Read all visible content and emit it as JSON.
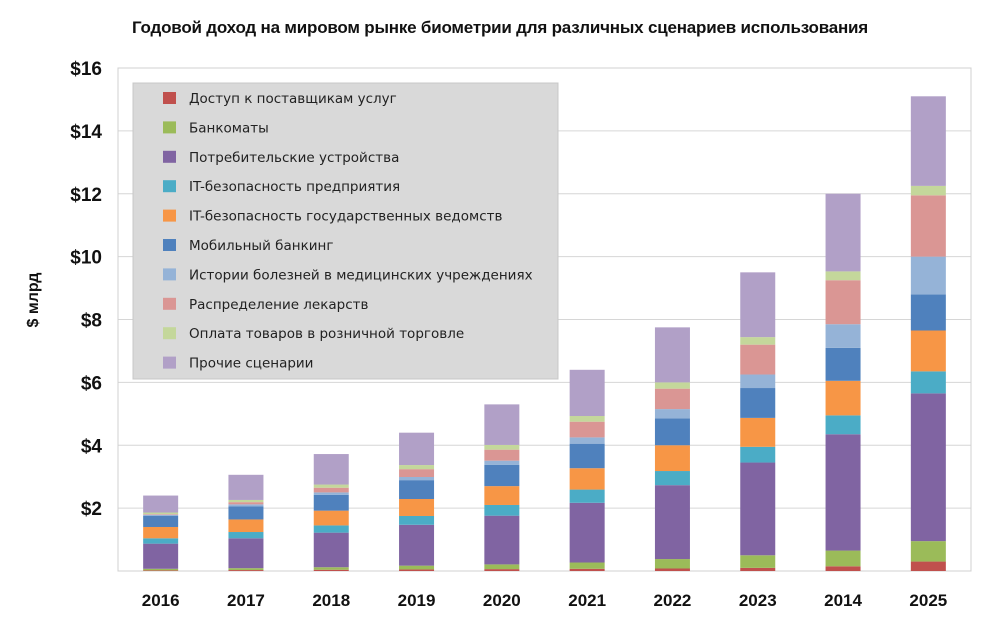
{
  "chart_data": {
    "type": "bar",
    "stacked": true,
    "title": "Годовой доход на мировом рынке биометрии для различных сценариев использования",
    "ylabel": "$ млрд",
    "xlabel": "",
    "ylim": [
      0,
      16
    ],
    "yticks": [
      {
        "value": 2,
        "label": "$2"
      },
      {
        "value": 4,
        "label": "$4"
      },
      {
        "value": 6,
        "label": "$6"
      },
      {
        "value": 8,
        "label": "$8"
      },
      {
        "value": 10,
        "label": "$10"
      },
      {
        "value": 12,
        "label": "$12"
      },
      {
        "value": 14,
        "label": "$14"
      },
      {
        "value": 16,
        "label": "$16"
      }
    ],
    "grid": true,
    "legend_position": "top-left",
    "categories": [
      "2016",
      "2017",
      "2018",
      "2019",
      "2020",
      "2021",
      "2022",
      "2023",
      "2014",
      "2025"
    ],
    "series": [
      {
        "name": "Доступ к поставщикам услуг",
        "color": "#c0504d",
        "values": [
          0.02,
          0.03,
          0.04,
          0.05,
          0.06,
          0.07,
          0.08,
          0.1,
          0.15,
          0.3
        ]
      },
      {
        "name": "Банкоматы",
        "color": "#9bbb59",
        "values": [
          0.05,
          0.06,
          0.08,
          0.12,
          0.15,
          0.2,
          0.3,
          0.4,
          0.5,
          0.65
        ]
      },
      {
        "name": "Потребительские устройства",
        "color": "#8064a2",
        "values": [
          0.8,
          0.95,
          1.1,
          1.3,
          1.55,
          1.9,
          2.35,
          2.95,
          3.7,
          4.7
        ]
      },
      {
        "name": "IT-безопасность предприятия",
        "color": "#4bacc6",
        "values": [
          0.17,
          0.2,
          0.23,
          0.28,
          0.34,
          0.42,
          0.45,
          0.5,
          0.6,
          0.7
        ]
      },
      {
        "name": "IT-безопасность государственных ведомств",
        "color": "#f79646",
        "values": [
          0.36,
          0.4,
          0.47,
          0.54,
          0.6,
          0.68,
          0.82,
          0.92,
          1.1,
          1.3
        ]
      },
      {
        "name": "Мобильный банкинг",
        "color": "#4f81bd",
        "values": [
          0.35,
          0.42,
          0.5,
          0.6,
          0.68,
          0.78,
          0.85,
          0.95,
          1.05,
          1.15
        ]
      },
      {
        "name": "Истории болезней в медицинских учреждениях",
        "color": "#95b3d7",
        "values": [
          0.04,
          0.06,
          0.08,
          0.1,
          0.13,
          0.2,
          0.3,
          0.43,
          0.75,
          1.2
        ]
      },
      {
        "name": "Распределение лекарств",
        "color": "#da9694",
        "values": [
          0.02,
          0.07,
          0.15,
          0.25,
          0.35,
          0.5,
          0.65,
          0.95,
          1.4,
          1.95
        ]
      },
      {
        "name": "Оплата товаров в розничной торговле",
        "color": "#c4d79b",
        "values": [
          0.05,
          0.07,
          0.1,
          0.13,
          0.15,
          0.18,
          0.2,
          0.24,
          0.28,
          0.3
        ]
      },
      {
        "name": "Прочие сценарии",
        "color": "#b1a0c7",
        "values": [
          0.54,
          0.8,
          0.97,
          1.03,
          1.29,
          1.47,
          1.75,
          2.06,
          2.47,
          2.85
        ]
      }
    ]
  }
}
